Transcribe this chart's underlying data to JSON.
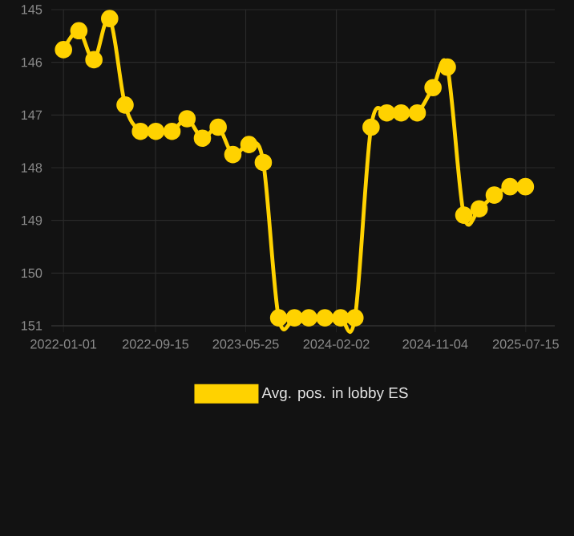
{
  "chart_data": {
    "type": "line",
    "x": [
      "2022-01-01",
      "2022-02-13",
      "2022-03-27",
      "2022-05-10",
      "2022-06-22",
      "2022-08-04",
      "2022-09-16",
      "2022-10-31",
      "2022-12-12",
      "2023-01-24",
      "2023-03-09",
      "2023-04-19",
      "2023-06-03",
      "2023-07-13",
      "2023-08-25",
      "2023-10-08",
      "2023-11-17",
      "2024-01-01",
      "2024-02-14",
      "2024-03-25",
      "2024-05-09",
      "2024-06-22",
      "2024-08-01",
      "2024-09-15",
      "2024-10-29",
      "2024-12-08",
      "2025-01-23",
      "2025-03-07",
      "2025-04-18",
      "2025-06-01",
      "2025-07-14"
    ],
    "series": [
      {
        "name": "Avg. pos. in lobby ES",
        "color": "#ffd200",
        "values": [
          145.76,
          145.4,
          145.95,
          145.17,
          146.81,
          147.31,
          147.31,
          147.31,
          147.07,
          147.44,
          147.23,
          147.75,
          147.56,
          147.9,
          150.85,
          150.85,
          150.85,
          150.85,
          150.85,
          150.85,
          147.23,
          146.96,
          146.96,
          146.96,
          146.48,
          146.09,
          148.9,
          148.78,
          148.52,
          148.36,
          148.36
        ]
      }
    ],
    "xlim": [
      "2021-11-28",
      "2025-10-04"
    ],
    "ylim": [
      151,
      145
    ],
    "xticks": [
      {
        "value": "2022-01-01",
        "label": "2022-01-01"
      },
      {
        "value": "2022-09-15",
        "label": "2022-09-15"
      },
      {
        "value": "2023-05-25",
        "label": "2023-05-25"
      },
      {
        "value": "2024-02-02",
        "label": "2024-02-02"
      },
      {
        "value": "2024-11-04",
        "label": "2024-11-04"
      },
      {
        "value": "2025-07-15",
        "label": "2025-07-15"
      }
    ],
    "yticks": [
      145,
      146,
      147,
      148,
      149,
      150,
      151
    ],
    "grid": true,
    "legend": "bottom",
    "marker": "circle",
    "line_style": "solid"
  }
}
